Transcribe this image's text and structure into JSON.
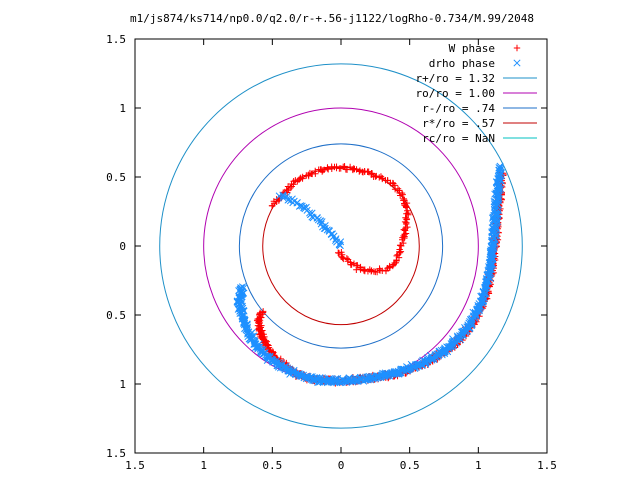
{
  "chart_data": {
    "type": "scatter",
    "title": "m1/js874/ks714/np0.0/q2.0/r-+.56-j1122/logRho-0.734/M.99/2048",
    "xlim": [
      -1.5,
      1.5
    ],
    "ylim": [
      -1.5,
      1.5
    ],
    "x_tick_labels": [
      "1.5",
      "1",
      "0.5",
      "0",
      "0.5",
      "1",
      "1.5"
    ],
    "x_tick_values": [
      -1.5,
      -1.0,
      -0.5,
      0,
      0.5,
      1.0,
      1.5
    ],
    "y_tick_labels": [
      "1.5",
      "1",
      "0.5",
      "0",
      "0.5",
      "1",
      "1.5"
    ],
    "y_tick_values": [
      1.5,
      1.0,
      0.5,
      0,
      -0.5,
      -1.0,
      -1.5
    ],
    "grid": false,
    "legend_position": "top-right",
    "circles": [
      {
        "name": "r+/ro = 1.32",
        "radius": 1.32,
        "color": "#1e90c8"
      },
      {
        "name": "ro/ro = 1.00",
        "radius": 1.0,
        "color": "#b000b0"
      },
      {
        "name": "r-/ro = .74",
        "radius": 0.74,
        "color": "#1e6fc8"
      },
      {
        "name": "r*/ro = .57",
        "radius": 0.57,
        "color": "#c00000"
      },
      {
        "name": "rc/ro = NaN",
        "radius": null,
        "color": "#00c0c0"
      }
    ],
    "series": [
      {
        "name": "W phase",
        "marker": "plus",
        "color": "#ff0000",
        "path": [
          [
            -0.5,
            0.29
          ],
          [
            -0.42,
            0.38
          ],
          [
            -0.3,
            0.49
          ],
          [
            -0.15,
            0.55
          ],
          [
            0.0,
            0.57
          ],
          [
            0.12,
            0.56
          ],
          [
            0.28,
            0.5
          ],
          [
            0.38,
            0.44
          ],
          [
            0.45,
            0.36
          ],
          [
            0.48,
            0.28
          ],
          [
            0.48,
            0.18
          ],
          [
            0.46,
            0.08
          ],
          [
            0.44,
            0.0
          ],
          [
            0.4,
            -0.12
          ],
          [
            0.34,
            -0.17
          ],
          [
            0.24,
            -0.18
          ],
          [
            0.12,
            -0.16
          ],
          [
            0.02,
            -0.08
          ],
          [
            -0.01,
            -0.04
          ]
        ],
        "path2": [
          [
            -0.58,
            -0.48
          ],
          [
            -0.6,
            -0.55
          ],
          [
            -0.58,
            -0.65
          ],
          [
            -0.52,
            -0.76
          ],
          [
            -0.44,
            -0.85
          ],
          [
            -0.32,
            -0.93
          ],
          [
            -0.18,
            -0.97
          ],
          [
            0.0,
            -0.98
          ],
          [
            0.2,
            -0.96
          ],
          [
            0.4,
            -0.93
          ],
          [
            0.6,
            -0.86
          ],
          [
            0.8,
            -0.74
          ],
          [
            0.95,
            -0.58
          ],
          [
            1.05,
            -0.38
          ],
          [
            1.1,
            -0.15
          ],
          [
            1.13,
            0.1
          ],
          [
            1.15,
            0.3
          ],
          [
            1.17,
            0.52
          ]
        ]
      },
      {
        "name": "drho phase",
        "marker": "cross",
        "color": "#1e90ff",
        "path": [
          [
            -0.44,
            0.37
          ],
          [
            -0.36,
            0.33
          ],
          [
            -0.26,
            0.27
          ],
          [
            -0.16,
            0.18
          ],
          [
            -0.08,
            0.1
          ],
          [
            -0.02,
            0.04
          ],
          [
            0.0,
            0.0
          ]
        ],
        "path2": [
          [
            -0.72,
            -0.3
          ],
          [
            -0.74,
            -0.4
          ],
          [
            -0.72,
            -0.5
          ],
          [
            -0.68,
            -0.62
          ],
          [
            -0.62,
            -0.72
          ],
          [
            -0.54,
            -0.8
          ],
          [
            -0.44,
            -0.87
          ],
          [
            -0.32,
            -0.93
          ],
          [
            -0.18,
            -0.97
          ],
          [
            0.0,
            -0.98
          ],
          [
            0.2,
            -0.96
          ],
          [
            0.4,
            -0.92
          ],
          [
            0.6,
            -0.85
          ],
          [
            0.78,
            -0.74
          ],
          [
            0.92,
            -0.6
          ],
          [
            1.02,
            -0.42
          ],
          [
            1.08,
            -0.2
          ],
          [
            1.11,
            0.05
          ],
          [
            1.13,
            0.28
          ],
          [
            1.16,
            0.57
          ]
        ]
      }
    ]
  }
}
